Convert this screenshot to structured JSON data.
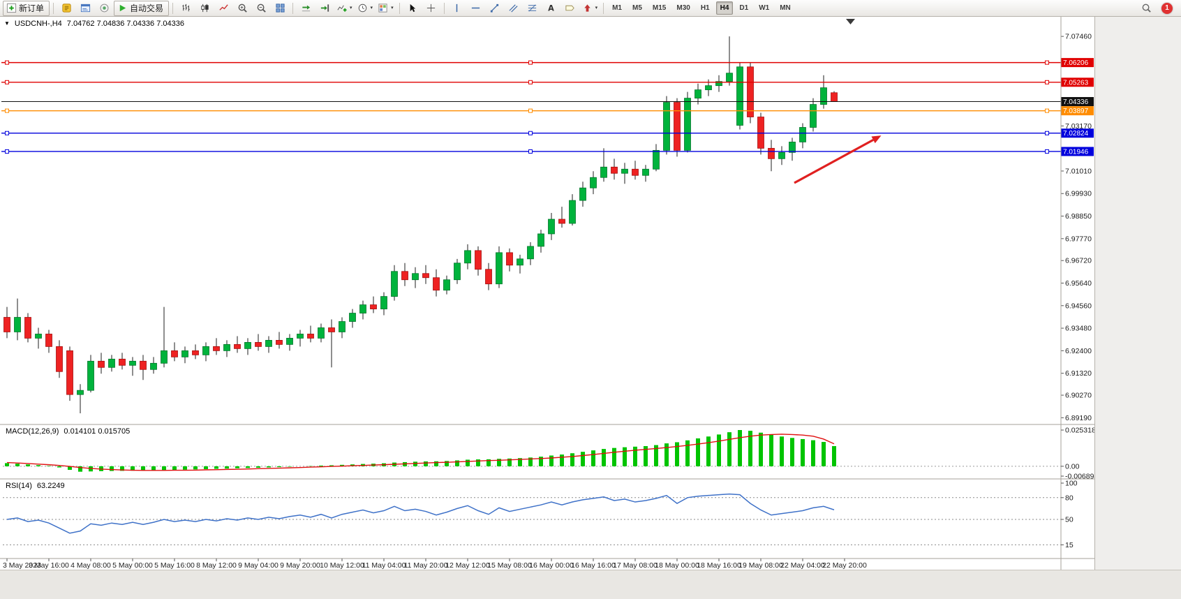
{
  "toolbar": {
    "notification_count": "1",
    "groups": [
      {
        "name": "trade",
        "items": [
          {
            "type": "labeled",
            "icon": "new-order-icon",
            "label": "新订单",
            "name": "new-order-button"
          }
        ]
      },
      {
        "name": "panels",
        "items": [
          {
            "type": "icon",
            "icon": "metaeditor-icon",
            "name": "metaeditor-button"
          },
          {
            "type": "icon",
            "icon": "terminal-icon",
            "name": "terminal-button"
          },
          {
            "type": "icon",
            "icon": "navigator-icon",
            "name": "navigator-button"
          },
          {
            "type": "labeled",
            "icon": "autotrading-icon",
            "label": "自动交易",
            "name": "autotrading-button"
          }
        ]
      },
      {
        "name": "chart-type",
        "items": [
          {
            "type": "icon",
            "icon": "bar-chart-icon",
            "name": "bar-chart-button"
          },
          {
            "type": "icon",
            "icon": "candlestick-icon",
            "name": "candlestick-chart-button"
          },
          {
            "type": "icon",
            "icon": "line-chart-icon",
            "name": "line-chart-button"
          },
          {
            "type": "icon",
            "icon": "zoom-in-icon",
            "name": "zoom-in-button"
          },
          {
            "type": "icon",
            "icon": "zoom-out-icon",
            "name": "zoom-out-button"
          },
          {
            "type": "icon",
            "icon": "tile-windows-icon",
            "name": "tile-windows-button"
          }
        ]
      },
      {
        "name": "chart-tools",
        "items": [
          {
            "type": "icon",
            "icon": "auto-scroll-icon",
            "name": "auto-scroll-button"
          },
          {
            "type": "icon",
            "icon": "chart-shift-icon",
            "name": "chart-shift-button"
          },
          {
            "type": "icon-drop",
            "icon": "indicators-icon",
            "name": "indicators-button"
          },
          {
            "type": "icon-drop",
            "icon": "periods-icon",
            "name": "periods-button"
          },
          {
            "type": "icon-drop",
            "icon": "templates-icon",
            "name": "templates-button"
          }
        ]
      },
      {
        "name": "pointer",
        "items": [
          {
            "type": "icon",
            "icon": "cursor-icon",
            "name": "cursor-button"
          },
          {
            "type": "icon",
            "icon": "crosshair-icon",
            "name": "crosshair-button"
          }
        ]
      },
      {
        "name": "objects",
        "items": [
          {
            "type": "icon",
            "icon": "vertical-line-icon",
            "name": "vertical-line-button"
          },
          {
            "type": "icon",
            "icon": "horizontal-line-icon",
            "name": "horizontal-line-button"
          },
          {
            "type": "icon",
            "icon": "trendline-icon",
            "name": "trendline-button"
          },
          {
            "type": "icon",
            "icon": "channel-icon",
            "name": "equidistant-channel-button"
          },
          {
            "type": "icon",
            "icon": "fibonacci-icon",
            "name": "fibonacci-button"
          },
          {
            "type": "icon",
            "icon": "text-icon",
            "name": "text-button"
          },
          {
            "type": "icon",
            "icon": "label-icon",
            "name": "text-label-button"
          },
          {
            "type": "icon-drop",
            "icon": "arrows-icon",
            "name": "arrows-button"
          }
        ]
      },
      {
        "name": "timeframes",
        "items": [
          {
            "type": "tf",
            "label": "M1",
            "name": "timeframe-m1-button"
          },
          {
            "type": "tf",
            "label": "M5",
            "name": "timeframe-m5-button"
          },
          {
            "type": "tf",
            "label": "M15",
            "name": "timeframe-m15-button"
          },
          {
            "type": "tf",
            "label": "M30",
            "name": "timeframe-m30-button"
          },
          {
            "type": "tf",
            "label": "H1",
            "name": "timeframe-h1-button"
          },
          {
            "type": "tf",
            "label": "H4",
            "name": "timeframe-h4-button",
            "active": true
          },
          {
            "type": "tf",
            "label": "D1",
            "name": "timeframe-d1-button"
          },
          {
            "type": "tf",
            "label": "W1",
            "name": "timeframe-w1-button"
          },
          {
            "type": "tf",
            "label": "MN",
            "name": "timeframe-mn-button"
          }
        ]
      }
    ],
    "right": [
      {
        "type": "icon",
        "icon": "search-icon",
        "name": "search-button"
      },
      {
        "type": "badge",
        "label": "1",
        "name": "notification-badge"
      }
    ]
  },
  "chart": {
    "symbol_period": "USDCNH-,H4",
    "ohlc_display": "7.04762 7.04836 7.04336 7.04336"
  },
  "chart_data": {
    "type": "candlestick",
    "symbol": "USDCNH-",
    "timeframe": "H4",
    "title": "USDCNH-,H4",
    "ohlc_display": "7.04762 7.04836 7.04336 7.04336",
    "colors": {
      "bull": "#00b33c",
      "bull_stroke": "#00752a",
      "bear": "#ee2222",
      "bear_stroke": "#a50f0f",
      "wick": "#1c1c1c",
      "macd_hist": "#00c400",
      "macd_signal": "#e01010",
      "rsi_line": "#3e71c8",
      "separator": "#a6a29a",
      "axis_text": "#1a1a1a",
      "arrow": "#e02020",
      "current_line": "#111111"
    },
    "candles": [
      [
        6.94,
        6.945,
        6.93,
        6.933
      ],
      [
        6.933,
        6.949,
        6.929,
        6.94
      ],
      [
        6.94,
        6.942,
        6.928,
        6.93
      ],
      [
        6.93,
        6.935,
        6.925,
        6.932
      ],
      [
        6.932,
        6.934,
        6.923,
        6.926
      ],
      [
        6.926,
        6.929,
        6.911,
        6.914
      ],
      [
        6.924,
        6.926,
        6.9,
        6.903
      ],
      [
        6.903,
        6.908,
        6.894,
        6.905
      ],
      [
        6.905,
        6.922,
        6.904,
        6.919
      ],
      [
        6.919,
        6.923,
        6.913,
        6.916
      ],
      [
        6.916,
        6.922,
        6.914,
        6.92
      ],
      [
        6.92,
        6.923,
        6.915,
        6.917
      ],
      [
        6.917,
        6.921,
        6.912,
        6.919
      ],
      [
        6.919,
        6.922,
        6.91,
        6.915
      ],
      [
        6.915,
        6.921,
        6.913,
        6.918
      ],
      [
        6.918,
        6.945,
        6.916,
        6.924
      ],
      [
        6.924,
        6.928,
        6.919,
        6.921
      ],
      [
        6.921,
        6.926,
        6.918,
        6.924
      ],
      [
        6.924,
        6.927,
        6.92,
        6.922
      ],
      [
        6.922,
        6.928,
        6.919,
        6.926
      ],
      [
        6.926,
        6.93,
        6.922,
        6.924
      ],
      [
        6.924,
        6.929,
        6.921,
        6.927
      ],
      [
        6.927,
        6.931,
        6.923,
        6.925
      ],
      [
        6.925,
        6.93,
        6.922,
        6.928
      ],
      [
        6.928,
        6.932,
        6.924,
        6.926
      ],
      [
        6.926,
        6.931,
        6.923,
        6.929
      ],
      [
        6.929,
        6.933,
        6.925,
        6.927
      ],
      [
        6.927,
        6.932,
        6.924,
        6.93
      ],
      [
        6.93,
        6.934,
        6.926,
        6.932
      ],
      [
        6.932,
        6.936,
        6.928,
        6.93
      ],
      [
        6.93,
        6.937,
        6.928,
        6.935
      ],
      [
        6.935,
        6.939,
        6.916,
        6.933
      ],
      [
        6.933,
        6.94,
        6.93,
        6.938
      ],
      [
        6.938,
        6.944,
        6.935,
        6.942
      ],
      [
        6.942,
        6.948,
        6.939,
        6.946
      ],
      [
        6.946,
        6.95,
        6.942,
        6.944
      ],
      [
        6.944,
        6.952,
        6.941,
        6.95
      ],
      [
        6.95,
        6.965,
        6.948,
        6.962
      ],
      [
        6.962,
        6.966,
        6.955,
        6.958
      ],
      [
        6.958,
        6.964,
        6.954,
        6.961
      ],
      [
        6.961,
        6.965,
        6.956,
        6.959
      ],
      [
        6.959,
        6.963,
        6.95,
        6.953
      ],
      [
        6.953,
        6.96,
        6.951,
        6.958
      ],
      [
        6.958,
        6.968,
        6.956,
        6.966
      ],
      [
        6.966,
        6.975,
        6.963,
        6.972
      ],
      [
        6.972,
        6.974,
        6.96,
        6.963
      ],
      [
        6.963,
        6.966,
        6.953,
        6.956
      ],
      [
        6.956,
        6.974,
        6.954,
        6.971
      ],
      [
        6.971,
        6.973,
        6.962,
        6.965
      ],
      [
        6.965,
        6.97,
        6.961,
        6.968
      ],
      [
        6.968,
        6.976,
        6.965,
        6.974
      ],
      [
        6.974,
        6.982,
        6.971,
        6.98
      ],
      [
        6.98,
        6.99,
        6.977,
        6.987
      ],
      [
        6.987,
        6.993,
        6.983,
        6.985
      ],
      [
        6.985,
        6.999,
        6.984,
        6.996
      ],
      [
        6.996,
        7.005,
        6.993,
        7.002
      ],
      [
        7.002,
        7.01,
        6.999,
        7.007
      ],
      [
        7.007,
        7.021,
        7.005,
        7.012
      ],
      [
        7.012,
        7.016,
        7.006,
        7.009
      ],
      [
        7.009,
        7.014,
        7.004,
        7.011
      ],
      [
        7.011,
        7.015,
        7.006,
        7.008
      ],
      [
        7.008,
        7.013,
        7.005,
        7.011
      ],
      [
        7.011,
        7.023,
        7.01,
        7.02
      ],
      [
        7.02,
        7.046,
        7.018,
        7.043
      ],
      [
        7.043,
        7.045,
        7.017,
        7.02
      ],
      [
        7.02,
        7.048,
        7.019,
        7.045
      ],
      [
        7.045,
        7.052,
        7.042,
        7.049
      ],
      [
        7.049,
        7.054,
        7.046,
        7.051
      ],
      [
        7.051,
        7.056,
        7.048,
        7.053
      ],
      [
        7.053,
        7.0746,
        7.051,
        7.057
      ],
      [
        7.032,
        7.062,
        7.03,
        7.06
      ],
      [
        7.06,
        7.062,
        7.033,
        7.036
      ],
      [
        7.036,
        7.038,
        7.018,
        7.021
      ],
      [
        7.021,
        7.025,
        7.01,
        7.016
      ],
      [
        7.016,
        7.022,
        7.013,
        7.019
      ],
      [
        7.019,
        7.026,
        7.015,
        7.024
      ],
      [
        7.024,
        7.033,
        7.021,
        7.031
      ],
      [
        7.031,
        7.045,
        7.029,
        7.042
      ],
      [
        7.042,
        7.056,
        7.04,
        7.05
      ],
      [
        7.04762,
        7.04836,
        7.04336,
        7.04336
      ]
    ],
    "time_labels": [
      "3 May 2023",
      "3 May 16:00",
      "4 May 08:00",
      "5 May 00:00",
      "5 May 16:00",
      "8 May 12:00",
      "9 May 04:00",
      "9 May 20:00",
      "10 May 12:00",
      "11 May 04:00",
      "11 May 20:00",
      "12 May 12:00",
      "15 May 08:00",
      "16 May 00:00",
      "16 May 16:00",
      "17 May 08:00",
      "18 May 00:00",
      "18 May 16:00",
      "19 May 08:00",
      "22 May 04:00",
      "22 May 20:00"
    ],
    "price_axis_ticks": [
      "7.07460",
      "7.03170",
      "7.01010",
      "6.99930",
      "6.98850",
      "6.97770",
      "6.96720",
      "6.95640",
      "6.94560",
      "6.93480",
      "6.92400",
      "6.91320",
      "6.90270",
      "6.89190"
    ],
    "hlines": [
      {
        "price": 7.06206,
        "label": "7.06206",
        "color": "#e00000",
        "name": "resistance-line-1"
      },
      {
        "price": 7.05263,
        "label": "7.05263",
        "color": "#e00000",
        "name": "resistance-line-2"
      },
      {
        "price": 7.03897,
        "label": "7.03897",
        "color": "#ff8c00",
        "name": "pivot-line"
      },
      {
        "price": 7.02824,
        "label": "7.02824",
        "color": "#0000dd",
        "name": "support-line-1"
      },
      {
        "price": 7.01946,
        "label": "7.01946",
        "color": "#0000dd",
        "name": "support-line-2"
      }
    ],
    "current_price": {
      "value": 7.04336,
      "label": "7.04336",
      "color": "#111111"
    },
    "arrow": {
      "from": {
        "bar": 75.2,
        "price": 7.0044
      },
      "to": {
        "bar": 83.5,
        "price": 7.0271
      },
      "color": "#e02020"
    },
    "macd": {
      "label": "MACD(12,26,9)",
      "values_display": "0.014101 0.015705",
      "axis": {
        "max": 0.025318,
        "min": -0.006894,
        "ticks": [
          "0.025318",
          "0.00",
          "-0.006894"
        ]
      },
      "histogram": [
        0.0022,
        0.0018,
        0.0013,
        0.0008,
        0.0003,
        -0.0008,
        -0.0025,
        -0.0038,
        -0.0036,
        -0.0034,
        -0.0033,
        -0.0032,
        -0.0031,
        -0.003,
        -0.0029,
        -0.0027,
        -0.0026,
        -0.0024,
        -0.0022,
        -0.002,
        -0.0018,
        -0.0016,
        -0.0014,
        -0.0012,
        -0.001,
        -0.0008,
        -0.0006,
        -0.0003,
        0.0,
        0.0002,
        0.0005,
        0.0007,
        0.001,
        0.0013,
        0.0016,
        0.0018,
        0.0021,
        0.0026,
        0.0029,
        0.0032,
        0.0034,
        0.0035,
        0.0037,
        0.0041,
        0.0046,
        0.0048,
        0.0049,
        0.0052,
        0.0054,
        0.0057,
        0.0061,
        0.0067,
        0.0075,
        0.0082,
        0.0091,
        0.0101,
        0.0111,
        0.0121,
        0.0128,
        0.0133,
        0.0137,
        0.0141,
        0.0148,
        0.016,
        0.0168,
        0.0181,
        0.0195,
        0.0208,
        0.0222,
        0.0238,
        0.0253,
        0.0248,
        0.0235,
        0.022,
        0.0208,
        0.0198,
        0.019,
        0.0182,
        0.017,
        0.0141
      ],
      "signal": [
        0.0026,
        0.0023,
        0.0019,
        0.0015,
        0.0011,
        0.0006,
        -0.0001,
        -0.0009,
        -0.0015,
        -0.002,
        -0.0023,
        -0.0026,
        -0.0028,
        -0.0029,
        -0.0029,
        -0.0029,
        -0.0028,
        -0.0028,
        -0.0027,
        -0.0025,
        -0.0024,
        -0.0022,
        -0.0021,
        -0.0019,
        -0.0017,
        -0.0015,
        -0.0013,
        -0.0011,
        -0.0009,
        -0.0006,
        -0.0004,
        -0.0001,
        0.0001,
        0.0004,
        0.0006,
        0.0009,
        0.0011,
        0.0014,
        0.0017,
        0.002,
        0.0023,
        0.0026,
        0.0028,
        0.0031,
        0.0034,
        0.0037,
        0.004,
        0.0042,
        0.0045,
        0.0048,
        0.0051,
        0.0054,
        0.0058,
        0.0063,
        0.0068,
        0.0075,
        0.0082,
        0.009,
        0.0098,
        0.0105,
        0.0112,
        0.0118,
        0.0124,
        0.0131,
        0.0138,
        0.0146,
        0.0155,
        0.0165,
        0.0176,
        0.0188,
        0.02,
        0.021,
        0.0218,
        0.0222,
        0.0224,
        0.0222,
        0.0218,
        0.021,
        0.019,
        0.0157
      ]
    },
    "rsi": {
      "label": "RSI(14)",
      "value_display": "63.2249",
      "levels": [
        80,
        50,
        15
      ],
      "axis_ticks": [
        "100",
        "80",
        "50",
        "15"
      ],
      "range": [
        0,
        100
      ],
      "values": [
        50,
        52,
        47,
        49,
        45,
        38,
        31,
        34,
        44,
        42,
        45,
        43,
        46,
        43,
        46,
        50,
        47,
        49,
        47,
        50,
        48,
        51,
        49,
        52,
        50,
        53,
        51,
        54,
        56,
        53,
        57,
        52,
        57,
        60,
        63,
        59,
        62,
        68,
        62,
        64,
        61,
        56,
        60,
        65,
        69,
        62,
        57,
        66,
        61,
        64,
        67,
        70,
        74,
        70,
        74,
        77,
        79,
        81,
        76,
        78,
        74,
        76,
        79,
        83,
        72,
        80,
        82,
        83,
        84,
        85,
        84,
        72,
        63,
        56,
        58,
        60,
        62,
        66,
        68,
        63.22
      ]
    }
  }
}
